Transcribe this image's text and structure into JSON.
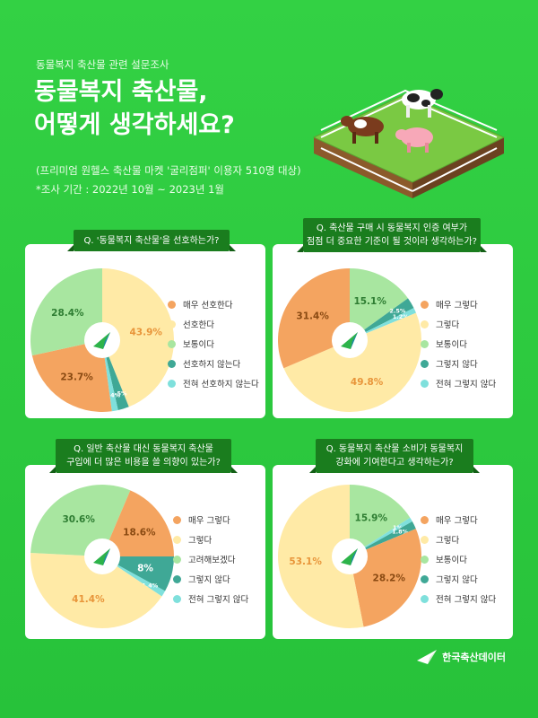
{
  "header": {
    "subtitle": "동물복지 축산물 관련 설문조사",
    "title_line1": "동물복지 축산물,",
    "title_line2": "어떻게 생각하세요?",
    "note_line1": "(프리미엄 원헬스 축산물 마켓 '굴리점퍼' 이용자 510명 대상)",
    "note_line2": "*조사 기간 : 2022년 10월 ~ 2023년 1월"
  },
  "colors": {
    "orange": "#f4a460",
    "yellow": "#ffeaa6",
    "lightgreen": "#a8e6a0",
    "teal": "#3fa896",
    "cyan": "#7fe0dc"
  },
  "chart_data": [
    {
      "type": "pie",
      "title": "Q. '동물복지 축산물'을 선호하는가?",
      "categories": [
        "매우 선호한다",
        "선호한다",
        "보통이다",
        "선호하지 않는다",
        "전혀 선호하지 않는다"
      ],
      "values": [
        23.7,
        43.9,
        28.4,
        2.5,
        1.4
      ]
    },
    {
      "type": "pie",
      "title": "Q. 축산물 구매 시 동물복지 인증 여부가 점점 더 중요한 기준이 될 것이라 생각하는가?",
      "categories": [
        "매우 그렇다",
        "그렇다",
        "보통이다",
        "그렇지 않다",
        "전혀 그렇지 않다"
      ],
      "values": [
        31.4,
        49.8,
        15.1,
        2.5,
        1.2
      ]
    },
    {
      "type": "pie",
      "title": "Q. 일반 축산물 대신 동물복지 축산물 구입에 더 많은 비용을 쓸 의향이 있는가?",
      "categories": [
        "매우 그렇다",
        "그렇다",
        "고려해보겠다",
        "그렇지 않다",
        "전혀 그렇지 않다"
      ],
      "values": [
        18.6,
        41.4,
        30.6,
        8,
        1.4
      ]
    },
    {
      "type": "pie",
      "title": "Q. 동물복지 축산물 소비가 동물복지 강화에 기여한다고 생각하는가?",
      "categories": [
        "매우 그렇다",
        "그렇다",
        "보통이다",
        "그렇지 않다",
        "전혀 그렇지 않다"
      ],
      "values": [
        28.2,
        53.1,
        15.9,
        1.8,
        1
      ]
    }
  ],
  "cards": [
    {
      "q_line1": "Q. '동물복지 축산물'을 선호하는가?",
      "q_line2": "",
      "labels": [
        "23.7%",
        "43.9%",
        "28.4%",
        "2.5%",
        "1.4%"
      ]
    },
    {
      "q_line1": "Q. 축산물 구매 시 동물복지 인증 여부가",
      "q_line2": "점점 더 중요한 기준이 될 것이라 생각하는가?",
      "labels": [
        "31.4%",
        "49.8%",
        "15.1%",
        "2.5%",
        "1.2%"
      ]
    },
    {
      "q_line1": "Q. 일반 축산물 대신 동물복지 축산물",
      "q_line2": "구입에 더 많은 비용을 쓸 의향이 있는가?",
      "labels": [
        "18.6%",
        "41.4%",
        "30.6%",
        "8%",
        "1.4%"
      ]
    },
    {
      "q_line1": "Q. 동물복지 축산물 소비가 동물복지",
      "q_line2": "강화에 기여한다고 생각하는가?",
      "labels": [
        "28.2%",
        "53.1%",
        "15.9%",
        "1.8%",
        "1%"
      ]
    }
  ],
  "footer": {
    "logo_text": "한국축산데이터"
  }
}
